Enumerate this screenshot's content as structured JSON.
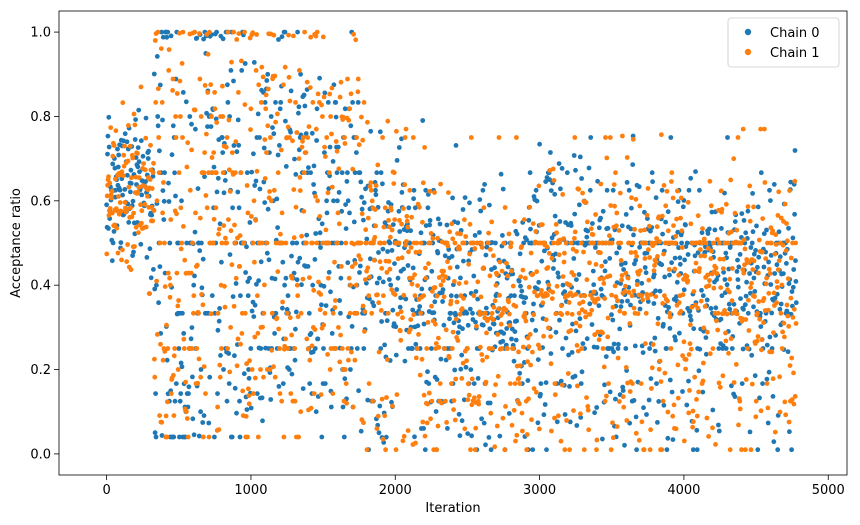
{
  "chart_data": {
    "type": "scatter",
    "title": "",
    "xlabel": "Iteration",
    "ylabel": "Acceptance ratio",
    "xlim": [
      -330,
      5130
    ],
    "ylim": [
      -0.05,
      1.05
    ],
    "xticks": [
      0,
      1000,
      2000,
      3000,
      4000,
      5000
    ],
    "yticks": [
      0.0,
      0.2,
      0.4,
      0.6,
      0.8,
      1.0
    ],
    "xtick_labels": [
      "0",
      "1000",
      "2000",
      "3000",
      "4000",
      "5000"
    ],
    "ytick_labels": [
      "0.0",
      "0.2",
      "0.4",
      "0.6",
      "0.8",
      "1.0"
    ],
    "n_iterations": 4780,
    "legend_position": "top-right",
    "grid": false,
    "series": [
      {
        "name": "Chain 0",
        "color": "#1f77b4",
        "sample_points": [
          [
            0,
            0.62
          ],
          [
            100,
            0.68
          ],
          [
            200,
            0.55
          ],
          [
            300,
            0.7
          ],
          [
            500,
            0.93
          ],
          [
            700,
            0.86
          ],
          [
            1000,
            0.92
          ],
          [
            1200,
            0.75
          ],
          [
            1400,
            0.55
          ],
          [
            1600,
            0.45
          ],
          [
            1800,
            0.58
          ],
          [
            2000,
            0.5
          ],
          [
            2200,
            0.4
          ],
          [
            2500,
            0.33
          ],
          [
            2800,
            0.25
          ],
          [
            3000,
            0.6
          ],
          [
            3200,
            0.55
          ],
          [
            3500,
            0.45
          ],
          [
            3800,
            0.4
          ],
          [
            4000,
            0.65
          ],
          [
            4200,
            0.5
          ],
          [
            4500,
            0.42
          ],
          [
            4780,
            0.35
          ]
        ]
      },
      {
        "name": "Chain 1",
        "color": "#ff7f0e",
        "sample_points": [
          [
            0,
            0.65
          ],
          [
            100,
            0.7
          ],
          [
            200,
            0.6
          ],
          [
            300,
            0.72
          ],
          [
            500,
            0.94
          ],
          [
            800,
            0.92
          ],
          [
            1100,
            0.85
          ],
          [
            1300,
            0.7
          ],
          [
            1500,
            0.5
          ],
          [
            1700,
            0.6
          ],
          [
            1900,
            0.45
          ],
          [
            2100,
            0.48
          ],
          [
            2400,
            0.35
          ],
          [
            2700,
            0.3
          ],
          [
            2900,
            0.28
          ],
          [
            3000,
            0.65
          ],
          [
            3300,
            0.5
          ],
          [
            3600,
            0.4
          ],
          [
            3900,
            0.45
          ],
          [
            4100,
            0.6
          ],
          [
            4300,
            0.45
          ],
          [
            4600,
            0.38
          ],
          [
            4780,
            0.4
          ]
        ]
      }
    ]
  }
}
